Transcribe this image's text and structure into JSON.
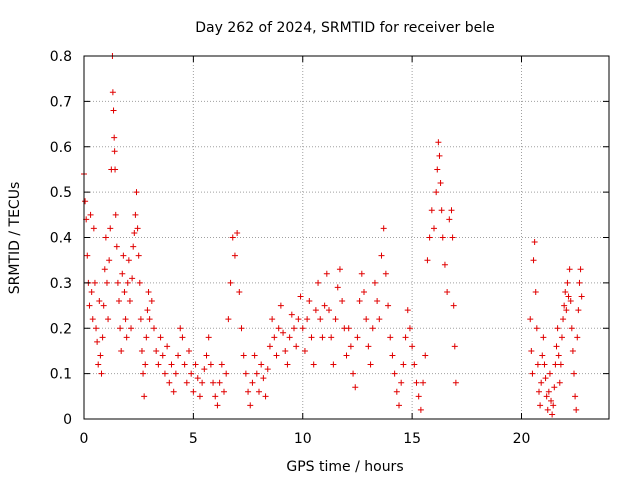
{
  "chart_data": {
    "type": "scatter",
    "title": "Day 262 of 2024, SRMTID for receiver bele",
    "xlabel": "GPS time / hours",
    "ylabel": "SRMTID / TECUs",
    "xlim": [
      0,
      24
    ],
    "ylim": [
      0,
      0.8
    ],
    "xticks": [
      0,
      5,
      10,
      15,
      20
    ],
    "yticks": [
      0,
      0.1,
      0.2,
      0.3,
      0.4,
      0.5,
      0.6,
      0.7,
      0.8
    ],
    "xtick_labels": [
      "0",
      "5",
      "10",
      "15",
      "20"
    ],
    "ytick_labels": [
      "0",
      "0.1",
      "0.2",
      "0.3",
      "0.4",
      "0.5",
      "0.6",
      "0.7",
      "0.8"
    ],
    "grid": true,
    "marker": "+",
    "color": "#e00000",
    "series": [
      {
        "name": "SRMTID",
        "points": [
          [
            0.0,
            0.54
          ],
          [
            0.05,
            0.48
          ],
          [
            0.1,
            0.44
          ],
          [
            0.15,
            0.36
          ],
          [
            0.2,
            0.3
          ],
          [
            0.25,
            0.25
          ],
          [
            0.3,
            0.45
          ],
          [
            0.35,
            0.28
          ],
          [
            0.4,
            0.22
          ],
          [
            0.45,
            0.42
          ],
          [
            0.5,
            0.3
          ],
          [
            0.55,
            0.2
          ],
          [
            0.6,
            0.17
          ],
          [
            0.65,
            0.12
          ],
          [
            0.7,
            0.26
          ],
          [
            0.75,
            0.14
          ],
          [
            0.8,
            0.1
          ],
          [
            0.85,
            0.18
          ],
          [
            0.9,
            0.25
          ],
          [
            0.95,
            0.33
          ],
          [
            1.0,
            0.4
          ],
          [
            1.05,
            0.3
          ],
          [
            1.1,
            0.22
          ],
          [
            1.15,
            0.35
          ],
          [
            1.2,
            0.42
          ],
          [
            1.25,
            0.55
          ],
          [
            1.3,
            0.8
          ],
          [
            1.32,
            0.72
          ],
          [
            1.35,
            0.68
          ],
          [
            1.38,
            0.62
          ],
          [
            1.4,
            0.59
          ],
          [
            1.42,
            0.55
          ],
          [
            1.45,
            0.45
          ],
          [
            1.5,
            0.38
          ],
          [
            1.55,
            0.3
          ],
          [
            1.6,
            0.26
          ],
          [
            1.65,
            0.2
          ],
          [
            1.7,
            0.15
          ],
          [
            1.75,
            0.32
          ],
          [
            1.8,
            0.36
          ],
          [
            1.85,
            0.28
          ],
          [
            1.9,
            0.22
          ],
          [
            1.95,
            0.18
          ],
          [
            2.0,
            0.3
          ],
          [
            2.05,
            0.35
          ],
          [
            2.1,
            0.26
          ],
          [
            2.15,
            0.2
          ],
          [
            2.2,
            0.31
          ],
          [
            2.25,
            0.38
          ],
          [
            2.3,
            0.41
          ],
          [
            2.35,
            0.45
          ],
          [
            2.4,
            0.5
          ],
          [
            2.45,
            0.42
          ],
          [
            2.5,
            0.36
          ],
          [
            2.55,
            0.3
          ],
          [
            2.6,
            0.22
          ],
          [
            2.65,
            0.15
          ],
          [
            2.7,
            0.1
          ],
          [
            2.75,
            0.05
          ],
          [
            2.8,
            0.12
          ],
          [
            2.85,
            0.18
          ],
          [
            2.9,
            0.24
          ],
          [
            2.95,
            0.28
          ],
          [
            3.0,
            0.22
          ],
          [
            3.1,
            0.26
          ],
          [
            3.2,
            0.2
          ],
          [
            3.3,
            0.15
          ],
          [
            3.4,
            0.12
          ],
          [
            3.5,
            0.18
          ],
          [
            3.6,
            0.14
          ],
          [
            3.7,
            0.1
          ],
          [
            3.8,
            0.16
          ],
          [
            3.9,
            0.08
          ],
          [
            4.0,
            0.12
          ],
          [
            4.1,
            0.06
          ],
          [
            4.2,
            0.1
          ],
          [
            4.3,
            0.14
          ],
          [
            4.4,
            0.2
          ],
          [
            4.5,
            0.18
          ],
          [
            4.6,
            0.12
          ],
          [
            4.7,
            0.08
          ],
          [
            4.8,
            0.15
          ],
          [
            4.9,
            0.1
          ],
          [
            5.0,
            0.06
          ],
          [
            5.1,
            0.12
          ],
          [
            5.2,
            0.09
          ],
          [
            5.3,
            0.05
          ],
          [
            5.4,
            0.08
          ],
          [
            5.5,
            0.11
          ],
          [
            5.6,
            0.14
          ],
          [
            5.7,
            0.18
          ],
          [
            5.8,
            0.12
          ],
          [
            5.9,
            0.08
          ],
          [
            6.0,
            0.05
          ],
          [
            6.1,
            0.03
          ],
          [
            6.2,
            0.08
          ],
          [
            6.3,
            0.12
          ],
          [
            6.4,
            0.06
          ],
          [
            6.5,
            0.1
          ],
          [
            6.6,
            0.22
          ],
          [
            6.7,
            0.3
          ],
          [
            6.8,
            0.4
          ],
          [
            6.9,
            0.36
          ],
          [
            7.0,
            0.41
          ],
          [
            7.1,
            0.28
          ],
          [
            7.2,
            0.2
          ],
          [
            7.3,
            0.14
          ],
          [
            7.4,
            0.1
          ],
          [
            7.5,
            0.06
          ],
          [
            7.6,
            0.03
          ],
          [
            7.7,
            0.08
          ],
          [
            7.8,
            0.14
          ],
          [
            7.9,
            0.1
          ],
          [
            8.0,
            0.06
          ],
          [
            8.1,
            0.12
          ],
          [
            8.2,
            0.09
          ],
          [
            8.3,
            0.05
          ],
          [
            8.4,
            0.11
          ],
          [
            8.5,
            0.16
          ],
          [
            8.6,
            0.22
          ],
          [
            8.7,
            0.18
          ],
          [
            8.8,
            0.14
          ],
          [
            8.9,
            0.2
          ],
          [
            9.0,
            0.25
          ],
          [
            9.1,
            0.19
          ],
          [
            9.2,
            0.15
          ],
          [
            9.3,
            0.12
          ],
          [
            9.4,
            0.18
          ],
          [
            9.5,
            0.23
          ],
          [
            9.6,
            0.2
          ],
          [
            9.7,
            0.16
          ],
          [
            9.8,
            0.22
          ],
          [
            9.9,
            0.27
          ],
          [
            10.0,
            0.2
          ],
          [
            10.1,
            0.15
          ],
          [
            10.2,
            0.22
          ],
          [
            10.3,
            0.26
          ],
          [
            10.4,
            0.18
          ],
          [
            10.5,
            0.12
          ],
          [
            10.6,
            0.24
          ],
          [
            10.7,
            0.3
          ],
          [
            10.8,
            0.22
          ],
          [
            10.9,
            0.18
          ],
          [
            11.0,
            0.25
          ],
          [
            11.1,
            0.32
          ],
          [
            11.2,
            0.24
          ],
          [
            11.3,
            0.18
          ],
          [
            11.4,
            0.12
          ],
          [
            11.5,
            0.22
          ],
          [
            11.6,
            0.29
          ],
          [
            11.7,
            0.33
          ],
          [
            11.8,
            0.26
          ],
          [
            11.9,
            0.2
          ],
          [
            12.0,
            0.14
          ],
          [
            12.1,
            0.2
          ],
          [
            12.2,
            0.16
          ],
          [
            12.3,
            0.1
          ],
          [
            12.4,
            0.07
          ],
          [
            12.5,
            0.18
          ],
          [
            12.6,
            0.26
          ],
          [
            12.7,
            0.32
          ],
          [
            12.8,
            0.28
          ],
          [
            12.9,
            0.22
          ],
          [
            13.0,
            0.16
          ],
          [
            13.1,
            0.12
          ],
          [
            13.2,
            0.2
          ],
          [
            13.3,
            0.3
          ],
          [
            13.4,
            0.26
          ],
          [
            13.5,
            0.22
          ],
          [
            13.6,
            0.36
          ],
          [
            13.7,
            0.42
          ],
          [
            13.8,
            0.32
          ],
          [
            13.9,
            0.25
          ],
          [
            14.0,
            0.18
          ],
          [
            14.1,
            0.14
          ],
          [
            14.2,
            0.1
          ],
          [
            14.3,
            0.06
          ],
          [
            14.4,
            0.03
          ],
          [
            14.5,
            0.08
          ],
          [
            14.6,
            0.12
          ],
          [
            14.7,
            0.18
          ],
          [
            14.8,
            0.24
          ],
          [
            14.9,
            0.2
          ],
          [
            15.0,
            0.16
          ],
          [
            15.1,
            0.12
          ],
          [
            15.2,
            0.08
          ],
          [
            15.3,
            0.05
          ],
          [
            15.4,
            0.02
          ],
          [
            15.5,
            0.08
          ],
          [
            15.6,
            0.14
          ],
          [
            15.7,
            0.35
          ],
          [
            15.8,
            0.4
          ],
          [
            15.9,
            0.46
          ],
          [
            16.0,
            0.42
          ],
          [
            16.1,
            0.5
          ],
          [
            16.15,
            0.55
          ],
          [
            16.2,
            0.61
          ],
          [
            16.25,
            0.58
          ],
          [
            16.3,
            0.52
          ],
          [
            16.35,
            0.46
          ],
          [
            16.4,
            0.4
          ],
          [
            16.5,
            0.34
          ],
          [
            16.6,
            0.28
          ],
          [
            16.7,
            0.44
          ],
          [
            16.8,
            0.46
          ],
          [
            16.85,
            0.4
          ],
          [
            16.9,
            0.25
          ],
          [
            16.95,
            0.16
          ],
          [
            17.0,
            0.08
          ],
          [
            20.4,
            0.22
          ],
          [
            20.45,
            0.15
          ],
          [
            20.5,
            0.1
          ],
          [
            20.55,
            0.35
          ],
          [
            20.6,
            0.39
          ],
          [
            20.65,
            0.28
          ],
          [
            20.7,
            0.2
          ],
          [
            20.75,
            0.12
          ],
          [
            20.8,
            0.06
          ],
          [
            20.85,
            0.03
          ],
          [
            20.9,
            0.08
          ],
          [
            20.95,
            0.14
          ],
          [
            21.0,
            0.18
          ],
          [
            21.05,
            0.12
          ],
          [
            21.1,
            0.09
          ],
          [
            21.15,
            0.05
          ],
          [
            21.2,
            0.02
          ],
          [
            21.25,
            0.06
          ],
          [
            21.3,
            0.1
          ],
          [
            21.35,
            0.04
          ],
          [
            21.4,
            0.01
          ],
          [
            21.45,
            0.03
          ],
          [
            21.5,
            0.07
          ],
          [
            21.55,
            0.12
          ],
          [
            21.6,
            0.16
          ],
          [
            21.65,
            0.2
          ],
          [
            21.7,
            0.14
          ],
          [
            21.75,
            0.08
          ],
          [
            21.8,
            0.12
          ],
          [
            21.85,
            0.18
          ],
          [
            21.9,
            0.22
          ],
          [
            21.95,
            0.25
          ],
          [
            22.0,
            0.28
          ],
          [
            22.05,
            0.24
          ],
          [
            22.1,
            0.3
          ],
          [
            22.15,
            0.27
          ],
          [
            22.2,
            0.33
          ],
          [
            22.25,
            0.26
          ],
          [
            22.3,
            0.2
          ],
          [
            22.35,
            0.15
          ],
          [
            22.4,
            0.1
          ],
          [
            22.45,
            0.05
          ],
          [
            22.5,
            0.02
          ],
          [
            22.55,
            0.18
          ],
          [
            22.6,
            0.24
          ],
          [
            22.65,
            0.3
          ],
          [
            22.7,
            0.33
          ],
          [
            22.75,
            0.27
          ]
        ]
      }
    ]
  }
}
